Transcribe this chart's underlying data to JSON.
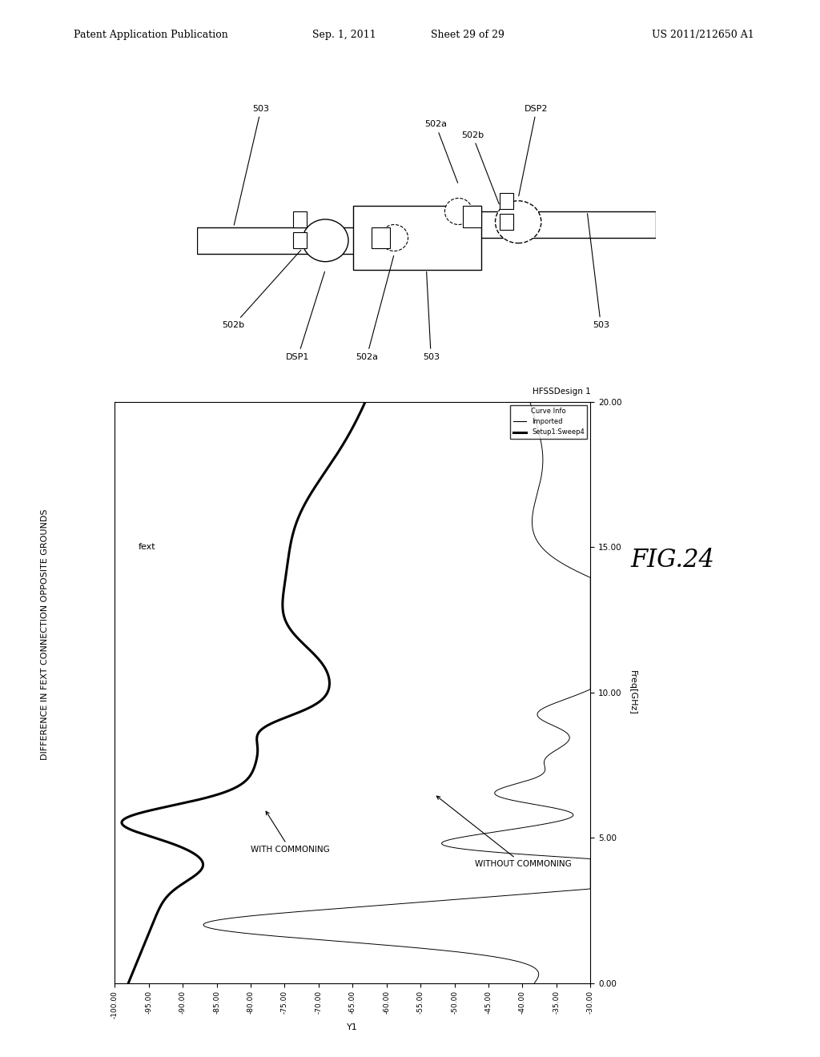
{
  "page_header_left": "Patent Application Publication",
  "page_header_mid": "Sep. 1, 2011",
  "page_header_sheet": "Sheet 29 of 29",
  "page_header_right": "US 2011/212650 A1",
  "fig_label": "FIG.24",
  "main_title": "DIFFERENCE IN FEXT CONNECTION OPPOSITE GROUNDS",
  "plot_title": "HFSSDesign 1",
  "xlabel_rotated": "Freq[GHz]",
  "ylabel_rotated": "fext",
  "y1_label": "Y1",
  "xmin": -100.0,
  "xmax": -30.0,
  "ymin": 0.0,
  "ymax": 20.0,
  "xticks": [
    -100,
    -95,
    -90,
    -85,
    -80,
    -75,
    -70,
    -65,
    -60,
    -55,
    -50,
    -45,
    -40,
    -35,
    -30
  ],
  "xtick_labels": [
    "-100.00",
    "-95.00",
    "-90.00",
    "-85.00",
    "-80.00",
    "-75.00",
    "-70.00",
    "-65.00",
    "-60.00",
    "-55.00",
    "-50.00",
    "-45.00",
    "-40.00",
    "-35.00",
    "-30.00"
  ],
  "yticks": [
    0.0,
    5.0,
    10.0,
    15.0,
    20.0
  ],
  "ytick_labels": [
    "0.00",
    "5.00",
    "10.00",
    "15.00",
    "20.00"
  ],
  "legend_title": "Curve Info",
  "legend_label1": "Imported",
  "legend_label2": "Setup1:Sweep4",
  "background_color": "#ffffff",
  "line_color": "#000000",
  "annotation_without": "WITHOUT COMMONING",
  "annotation_with": "WITH COMMONING"
}
